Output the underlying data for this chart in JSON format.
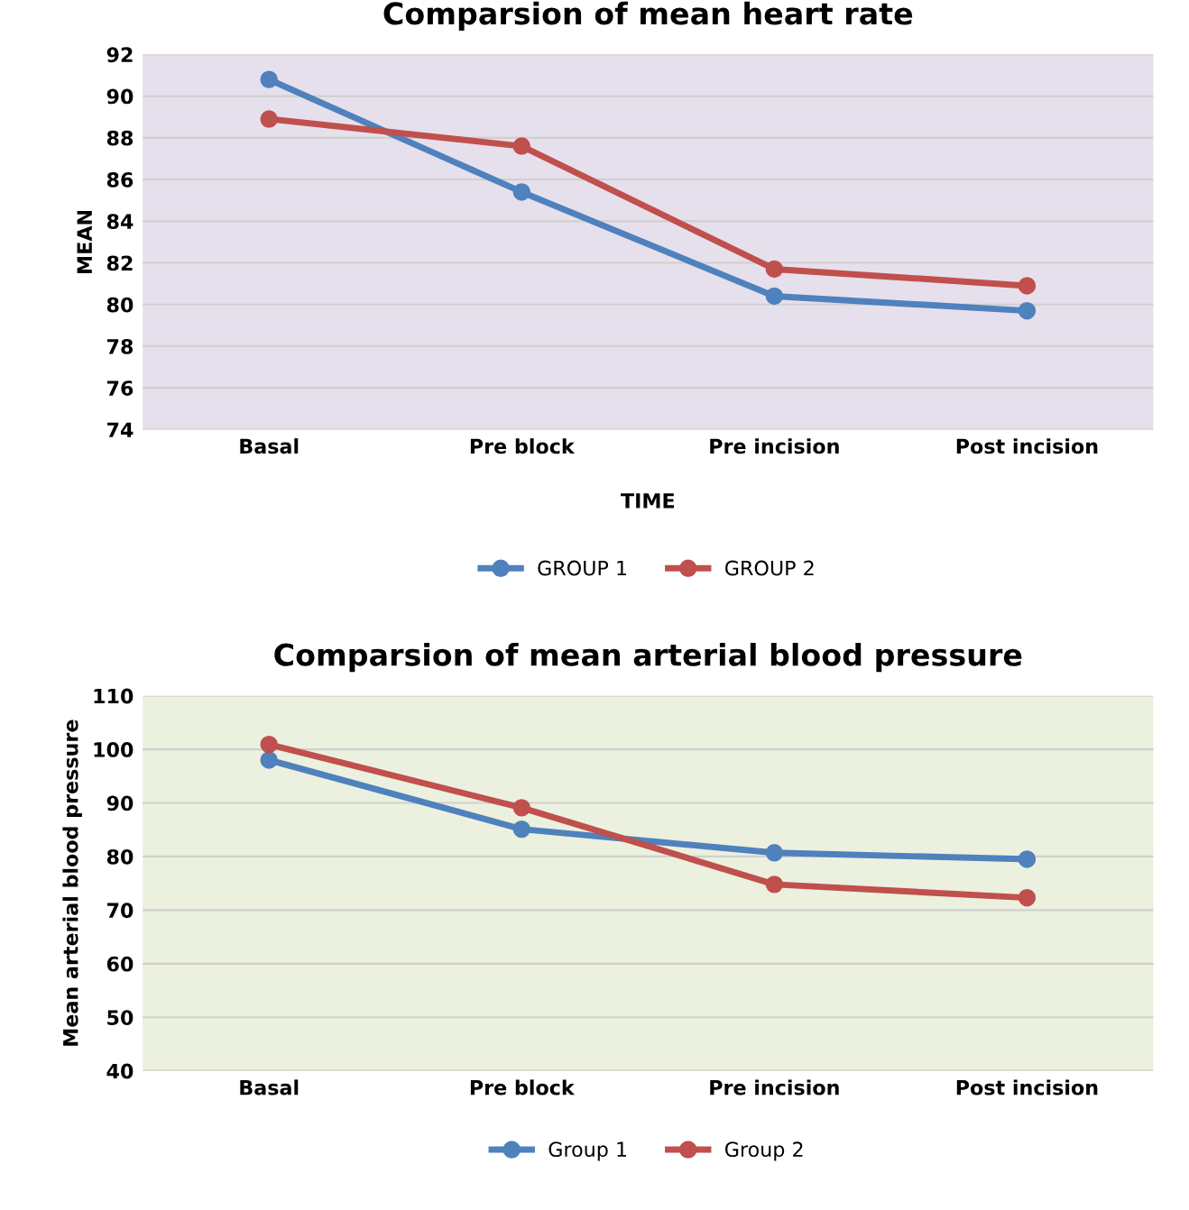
{
  "chart_data": [
    {
      "type": "line",
      "title": "Comparsion of mean heart rate",
      "xlabel": "TIME",
      "ylabel": "MEAN",
      "categories": [
        "Basal",
        "Pre block",
        "Pre incision",
        "Post incision"
      ],
      "series": [
        {
          "name": "GROUP 1",
          "color": "#4f81bd",
          "values": [
            90.8,
            85.4,
            80.4,
            79.7
          ]
        },
        {
          "name": "GROUP 2",
          "color": "#c0504d",
          "values": [
            88.9,
            87.6,
            81.7,
            80.9
          ]
        }
      ],
      "ylim": [
        74,
        92
      ],
      "yticks": [
        74,
        76,
        78,
        80,
        82,
        84,
        86,
        88,
        90,
        92
      ],
      "grid": "y",
      "legend": "bottom",
      "marker": "circle",
      "line_style": "solid"
    },
    {
      "type": "line",
      "title": "Comparsion of mean arterial blood pressure",
      "ylabel": "Mean arterial blood pressure",
      "categories": [
        "Basal",
        "Pre block",
        "Pre incision",
        "Post incision"
      ],
      "series": [
        {
          "name": "Group 1",
          "color": "#4f81bd",
          "values": [
            98.0,
            85.1,
            80.7,
            79.5
          ]
        },
        {
          "name": "Group 2",
          "color": "#c0504d",
          "values": [
            100.9,
            89.1,
            74.8,
            72.3
          ]
        }
      ],
      "ylim": [
        40,
        110
      ],
      "yticks": [
        40,
        50,
        60,
        70,
        80,
        90,
        100,
        110
      ],
      "grid": "y",
      "legend": "bottom",
      "marker": "circle",
      "line_style": "solid"
    }
  ]
}
